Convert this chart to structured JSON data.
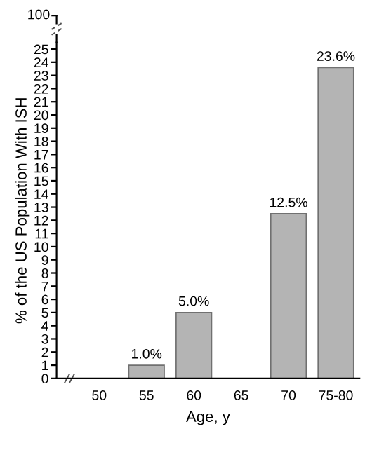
{
  "chart_data": {
    "type": "bar",
    "xlabel": "Age, y",
    "ylabel": "% of the US Population With ISH",
    "categories": [
      "50",
      "55",
      "60",
      "65",
      "70",
      "75-80"
    ],
    "values": [
      null,
      1.0,
      5.0,
      null,
      12.5,
      23.6
    ],
    "value_labels": [
      null,
      "1.0%",
      "5.0%",
      null,
      "12.5%",
      "23.6%"
    ],
    "color": "#b4b4b4",
    "ylim": [
      0,
      25.5
    ],
    "yticks": [
      0,
      1,
      2,
      3,
      4,
      5,
      6,
      7,
      8,
      9,
      10,
      11,
      12,
      13,
      14,
      15,
      16,
      17,
      18,
      19,
      20,
      21,
      22,
      23,
      24,
      25
    ],
    "annotations": [
      "100"
    ],
    "grid": false
  }
}
